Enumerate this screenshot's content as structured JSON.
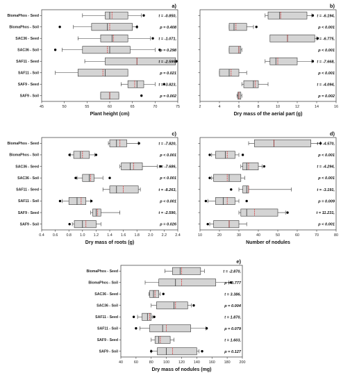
{
  "chart_data": [
    {
      "type": "box",
      "panel_label": "a)",
      "xlabel": "Plant height (cm)",
      "xlim": [
        45,
        75
      ],
      "xticks": [
        45,
        50,
        55,
        60,
        65,
        70,
        75
      ],
      "categories": [
        "BiomaPhos - Seed",
        "BiomaPhos - Soil",
        "SAC36 - Seed",
        "SAC36 - Soil",
        "SAF11 - Seed",
        "SAF11 - Soil",
        "SAF9 - Seed",
        "SAF9 - Soil"
      ],
      "boxes": [
        {
          "wmin": 54,
          "q1": 59,
          "median": 60,
          "mean": 60.5,
          "q3": 64,
          "wmax": 67,
          "outliers": [
            67.5
          ]
        },
        {
          "wmin": 52,
          "q1": 56,
          "median": 59.5,
          "mean": 60,
          "q3": 65,
          "wmax": 66,
          "outliers": [
            49,
            66
          ]
        },
        {
          "wmin": 53,
          "q1": 58,
          "median": 60.5,
          "mean": 60.8,
          "q3": 64,
          "wmax": 69,
          "outliers": [
            69.5
          ]
        },
        {
          "wmin": 49.5,
          "q1": 54,
          "median": 60,
          "mean": 59.5,
          "q3": 64.5,
          "wmax": 70,
          "outliers": [
            48,
            71
          ]
        },
        {
          "wmin": 54.5,
          "q1": 59,
          "median": 66,
          "mean": 66,
          "q3": 74.5,
          "wmax": 74.5,
          "outliers": [
            74.7
          ]
        },
        {
          "wmin": 48,
          "q1": 53,
          "median": 59,
          "mean": 58.5,
          "q3": 64,
          "wmax": 64,
          "outliers": []
        },
        {
          "wmin": 62.5,
          "q1": 64,
          "median": 66,
          "mean": 65.5,
          "q3": 67.5,
          "wmax": 70,
          "outliers": [
            72
          ]
        },
        {
          "wmin": 58,
          "q1": 58,
          "median": 60,
          "mean": 60,
          "q3": 62,
          "wmax": 62,
          "outliers": [
            67
          ]
        }
      ],
      "stats": [
        {
          "t": "t = -0.850,",
          "p": "p = 0.408"
        },
        {
          "t": "t = -1.071,",
          "p": "p = 0.298"
        },
        {
          "t": "t = -2.595,",
          "p": "p = 0.021"
        },
        {
          "t": "t = -3.823,",
          "p": "p = 0.002"
        }
      ]
    },
    {
      "type": "box",
      "panel_label": "b)",
      "xlabel": "Dry mass of the aerial part (g)",
      "xlim": [
        2,
        16
      ],
      "xticks": [
        2,
        4,
        6,
        8,
        10,
        12,
        14,
        16
      ],
      "categories": [],
      "boxes": [
        {
          "wmin": 8.7,
          "q1": 9,
          "median": 10.2,
          "mean": 10.3,
          "q3": 13,
          "wmax": 13.5,
          "outliers": [
            13.6
          ]
        },
        {
          "wmin": 5,
          "q1": 5,
          "median": 5.5,
          "mean": 5.7,
          "q3": 6.8,
          "wmax": 7.5,
          "outliers": [
            7.8
          ]
        },
        {
          "wmin": 9.2,
          "q1": 9.2,
          "median": 11,
          "mean": 11,
          "q3": 13.8,
          "wmax": 14,
          "outliers": [
            14.1
          ]
        },
        {
          "wmin": 5,
          "q1": 5,
          "median": 6,
          "mean": 6,
          "q3": 6.2,
          "wmax": 6.3,
          "outliers": []
        },
        {
          "wmin": 8.7,
          "q1": 9.2,
          "median": 9.8,
          "mean": 10,
          "q3": 12,
          "wmax": 13.5,
          "outliers": [
            13.6
          ]
        },
        {
          "wmin": 4,
          "q1": 4,
          "median": 5,
          "mean": 5.2,
          "q3": 6,
          "wmax": 6.8,
          "outliers": []
        },
        {
          "wmin": 6.3,
          "q1": 6.5,
          "median": 7.5,
          "mean": 7.7,
          "q3": 8,
          "wmax": 9,
          "outliers": []
        },
        {
          "wmin": 5.8,
          "q1": 5.9,
          "median": 6,
          "mean": 6,
          "q3": 6.2,
          "wmax": 6.3,
          "outliers": []
        }
      ],
      "stats": [
        {
          "t": "t = -6.194,",
          "p": "p < 0.001"
        },
        {
          "t": "t = -6.775,",
          "p": "p < 0.001"
        },
        {
          "t": "t = -7.668,",
          "p": "p < 0.001"
        },
        {
          "t": "t = -4.094,",
          "p": "p = 0.002"
        }
      ]
    },
    {
      "type": "box",
      "panel_label": "c)",
      "xlabel": "Dry mass of roots (g)",
      "xlim": [
        0.4,
        2.4
      ],
      "xticks": [
        "0.4",
        "0.6",
        "0.8",
        "1.0",
        "1.2",
        "1.4",
        "1.6",
        "1.8",
        "2.0",
        "2.2",
        "2.4"
      ],
      "categories": [
        "BiomaPhos - Seed",
        "BiomaPhos - Soil",
        "SAC36 - Seed",
        "SAC36 - Soil",
        "SAF11 - Seed",
        "SAF11 - Soil",
        "SAF9 - Seed",
        "SAF9 - Soil"
      ],
      "boxes": [
        {
          "wmin": 1.38,
          "q1": 1.4,
          "median": 1.5,
          "mean": 1.55,
          "q3": 1.65,
          "wmax": 1.82,
          "outliers": [
            1.83
          ]
        },
        {
          "wmin": 0.82,
          "q1": 0.87,
          "median": 0.97,
          "mean": 1.0,
          "q3": 1.1,
          "wmax": 1.18,
          "outliers": [
            0.81,
            1.2
          ]
        },
        {
          "wmin": 1.55,
          "q1": 1.57,
          "median": 1.7,
          "mean": 1.75,
          "q3": 1.88,
          "wmax": 2.1,
          "outliers": [
            2.15
          ]
        },
        {
          "wmin": 0.92,
          "q1": 1.0,
          "median": 1.1,
          "mean": 1.12,
          "q3": 1.17,
          "wmax": 1.3,
          "outliers": [
            0.9,
            1.4
          ]
        },
        {
          "wmin": 1.3,
          "q1": 1.4,
          "median": 1.5,
          "mean": 1.6,
          "q3": 1.82,
          "wmax": 1.85,
          "outliers": []
        },
        {
          "wmin": 0.7,
          "q1": 0.8,
          "median": 0.92,
          "mean": 0.98,
          "q3": 1.05,
          "wmax": 1.12,
          "outliers": [
            0.67,
            1.13
          ]
        },
        {
          "wmin": 1.12,
          "q1": 1.15,
          "median": 1.2,
          "mean": 1.22,
          "q3": 1.27,
          "wmax": 1.55,
          "outliers": []
        },
        {
          "wmin": 0.85,
          "q1": 0.88,
          "median": 1.0,
          "mean": 1.05,
          "q3": 1.2,
          "wmax": 1.27,
          "outliers": [
            0.81
          ]
        }
      ],
      "stats": [
        {
          "t": "t = -7.820,",
          "p": "p < 0.001"
        },
        {
          "t": "t = -7.686,",
          "p": "p < 0.001"
        },
        {
          "t": "t = -8.263,",
          "p": "p < 0.001"
        },
        {
          "t": "t = -2.590,",
          "p": "p = 0.026"
        }
      ]
    },
    {
      "type": "box",
      "panel_label": "d)",
      "xlabel": "Number of nodules",
      "xlim": [
        10,
        80
      ],
      "xticks": [
        10,
        20,
        30,
        40,
        50,
        60,
        70,
        80
      ],
      "categories": [],
      "boxes": [
        {
          "wmin": 35,
          "q1": 38,
          "median": 48,
          "mean": 48,
          "q3": 67,
          "wmax": 72,
          "outliers": [
            72
          ]
        },
        {
          "wmin": 16,
          "q1": 18,
          "median": 23,
          "mean": 24,
          "q3": 28,
          "wmax": 30,
          "outliers": [
            15,
            32
          ]
        },
        {
          "wmin": 31,
          "q1": 32,
          "median": 34,
          "mean": 35,
          "q3": 40,
          "wmax": 42,
          "outliers": [
            43
          ]
        },
        {
          "wmin": 16,
          "q1": 17,
          "median": 25,
          "mean": 24,
          "q3": 31,
          "wmax": 33,
          "outliers": [
            15
          ]
        },
        {
          "wmin": 30,
          "q1": 32,
          "median": 34,
          "mean": 35,
          "q3": 35,
          "wmax": 57,
          "outliers": [
            26
          ]
        },
        {
          "wmin": 14,
          "q1": 18,
          "median": 22,
          "mean": 24,
          "q3": 28,
          "wmax": 30,
          "outliers": [
            13,
            34
          ]
        },
        {
          "wmin": 30,
          "q1": 31,
          "median": 34,
          "mean": 38,
          "q3": 50,
          "wmax": 54,
          "outliers": [
            55
          ]
        },
        {
          "wmin": 15,
          "q1": 17,
          "median": 25,
          "mean": 25,
          "q3": 30,
          "wmax": 34,
          "outliers": [
            14
          ]
        }
      ],
      "stats": [
        {
          "t": "t = -4.570,",
          "p": "p < 0.001"
        },
        {
          "t": "t = -4.294,",
          "p": "p < 0.001"
        },
        {
          "t": "t = -3.191,",
          "p": "p = 0.009"
        },
        {
          "t": "t = 11.231,",
          "p": "p < 0.001"
        }
      ]
    },
    {
      "type": "box",
      "panel_label": "e)",
      "xlabel": "Dry mass of nodules (mg)",
      "xlim": [
        40,
        200
      ],
      "xticks": [
        40,
        60,
        80,
        100,
        120,
        140,
        160,
        180,
        200
      ],
      "categories": [
        "BiomaPhos - Seed",
        "BiomaPhos - Soil",
        "SAC36 - Seed",
        "SAC36 - Soil",
        "SAF11 - Seed",
        "SAF11 - Soil",
        "SAF9 - Seed",
        "SAF9 - Soil"
      ],
      "boxes": [
        {
          "wmin": 98,
          "q1": 108,
          "median": 118,
          "mean": 120,
          "q3": 145,
          "wmax": 150,
          "outliers": []
        },
        {
          "wmin": 72,
          "q1": 90,
          "median": 112,
          "mean": 120,
          "q3": 165,
          "wmax": 182,
          "outliers": [
            185
          ]
        },
        {
          "wmin": 77,
          "q1": 78,
          "median": 83,
          "mean": 85,
          "q3": 90,
          "wmax": 92,
          "outliers": [
            96
          ]
        },
        {
          "wmin": 80,
          "q1": 87,
          "median": 110,
          "mean": 112,
          "q3": 128,
          "wmax": 133,
          "outliers": [
            136
          ]
        },
        {
          "wmin": 62,
          "q1": 68,
          "median": 75,
          "mean": 78,
          "q3": 80,
          "wmax": 82,
          "outliers": [
            57,
            84
          ]
        },
        {
          "wmin": 65,
          "q1": 78,
          "median": 95,
          "mean": 100,
          "q3": 132,
          "wmax": 152,
          "outliers": [
            60,
            153
          ]
        },
        {
          "wmin": 80,
          "q1": 85,
          "median": 90,
          "mean": 92,
          "q3": 105,
          "wmax": 110,
          "outliers": []
        },
        {
          "wmin": 80,
          "q1": 88,
          "median": 100,
          "mean": 108,
          "q3": 140,
          "wmax": 143,
          "outliers": [
            80,
            147
          ]
        }
      ],
      "stats": [
        {
          "t": "t = -2.870,",
          "p": "p = 0.777"
        },
        {
          "t": "t = 3.386,",
          "p": "p = 0.004"
        },
        {
          "t": "t = 1.870,",
          "p": "p = 0.079"
        },
        {
          "t": "t = 1.603,",
          "p": "p = 0.127"
        }
      ]
    }
  ],
  "colors": {
    "box_fill": "#d4d4d4",
    "box_stroke": "#333333",
    "mean_line": "#d62728",
    "outlier": "#000000"
  }
}
